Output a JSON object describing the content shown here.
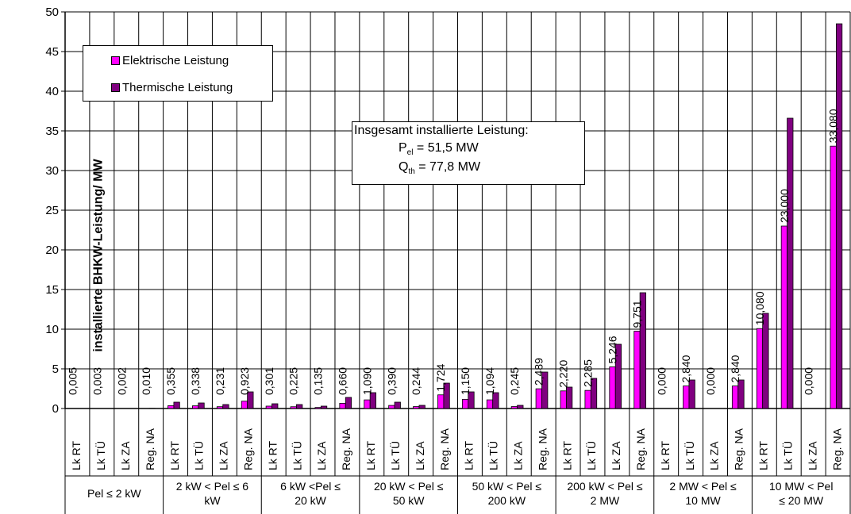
{
  "chart_data": {
    "type": "bar",
    "ylabel": "installierte BHKW-Leistung/ MW",
    "ylim": [
      0,
      50
    ],
    "yticks": [
      "0",
      "5",
      "10",
      "15",
      "20",
      "25",
      "30",
      "35",
      "40",
      "45",
      "50"
    ],
    "groups": [
      {
        "label": "Pel ≤ 2 kW",
        "line1": "Pel ≤ 2 kW",
        "line2": ""
      },
      {
        "label": "2 kW < Pel ≤ 6 kW",
        "line1": "2 kW < Pel ≤ 6",
        "line2": "kW"
      },
      {
        "label": "6 kW <Pel ≤ 20 kW",
        "line1": "6 kW <Pel ≤",
        "line2": "20 kW"
      },
      {
        "label": "20 kW < Pel ≤ 50 kW",
        "line1": "20 kW < Pel ≤",
        "line2": "50 kW"
      },
      {
        "label": "50 kW < Pel ≤ 200 kW",
        "line1": "50 kW < Pel ≤",
        "line2": "200 kW"
      },
      {
        "label": "200 kW < Pel ≤ 2 MW",
        "line1": "200 kW < Pel ≤",
        "line2": "2 MW"
      },
      {
        "label": "2 MW < Pel ≤ 10 MW",
        "line1": "2 MW < Pel ≤",
        "line2": "10 MW"
      },
      {
        "label": "10 MW < Pel ≤ 20 MW",
        "line1": "10 MW < Pel",
        "line2": "≤ 20 MW"
      }
    ],
    "subcategories": [
      "Lk RT",
      "Lk TÜ",
      "Lk ZA",
      "Reg. NA"
    ],
    "series": [
      {
        "name": "Elektrische Leistung",
        "color": "#ff00ff",
        "values": [
          0.005,
          0.003,
          0.002,
          0.01,
          0.355,
          0.338,
          0.231,
          0.923,
          0.301,
          0.225,
          0.135,
          0.66,
          1.09,
          0.39,
          0.244,
          1.724,
          1.15,
          1.094,
          0.245,
          2.489,
          2.22,
          2.285,
          5.246,
          9.751,
          0.0,
          2.84,
          0.0,
          2.84,
          10.08,
          23.0,
          0.0,
          33.08
        ]
      },
      {
        "name": "Thermische Leistung",
        "color": "#800080",
        "values": [
          0.01,
          0.01,
          0.01,
          0.02,
          0.8,
          0.7,
          0.5,
          2.1,
          0.6,
          0.5,
          0.3,
          1.4,
          2.0,
          0.8,
          0.4,
          3.2,
          2.1,
          2.0,
          0.4,
          4.6,
          2.7,
          3.8,
          8.1,
          14.6,
          0.0,
          3.6,
          0.0,
          3.6,
          12.0,
          36.6,
          0.0,
          48.5
        ]
      }
    ],
    "data_labels": [
      "0,005",
      "0,003",
      "0,002",
      "0,010",
      "0,355",
      "0,338",
      "0,231",
      "0,923",
      "0,301",
      "0,225",
      "0,135",
      "0,660",
      "1,090",
      "0,390",
      "0,244",
      "1,724",
      "1,150",
      "1,094",
      "0,245",
      "2,489",
      "2,220",
      "2,285",
      "5,246",
      "9,751",
      "0,000",
      "2,840",
      "0,000",
      "2,840",
      "10,080",
      "23,000",
      "0,000",
      "33,080"
    ],
    "grid": true,
    "legend_position": "top-left"
  },
  "annotation": {
    "title": "Insgesamt installierte Leistung:",
    "pel_prefix": "P",
    "pel_sub": "el",
    "pel_value": " = 51,5 MW",
    "qth_prefix": "Q",
    "qth_sub": "th",
    "qth_value": " = 77,8 MW"
  }
}
